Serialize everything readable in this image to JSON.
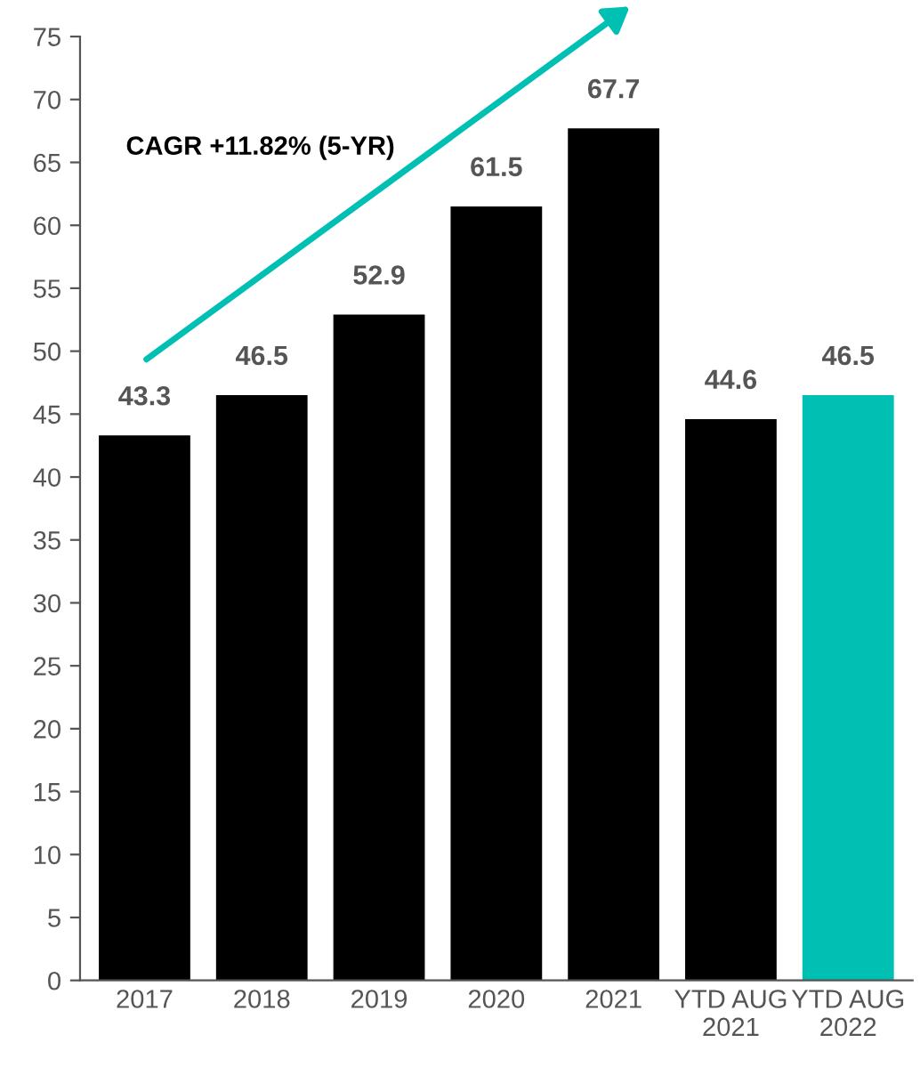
{
  "chart_data": {
    "type": "bar",
    "categories": [
      "2017",
      "2018",
      "2019",
      "2020",
      "2021",
      "YTD AUG\n2021",
      "YTD AUG\n2022"
    ],
    "values": [
      43.3,
      46.5,
      52.9,
      61.5,
      67.7,
      44.6,
      46.5
    ],
    "colors": [
      "#000000",
      "#000000",
      "#000000",
      "#000000",
      "#000000",
      "#000000",
      "#00bfb3"
    ],
    "ylim": [
      0,
      75
    ],
    "yticks": [
      0,
      5,
      10,
      15,
      20,
      25,
      30,
      35,
      40,
      45,
      50,
      55,
      60,
      65,
      70,
      75
    ],
    "data_labels": true,
    "grid": false,
    "legend": false,
    "annotations": [
      "CAGR +11.82% (5-YR)"
    ]
  }
}
